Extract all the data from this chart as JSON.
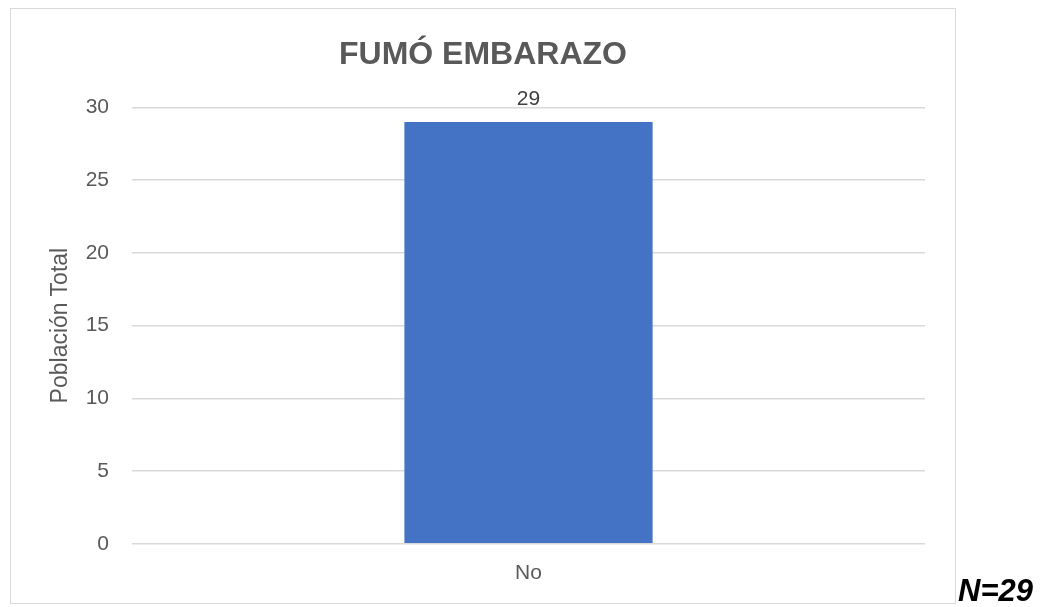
{
  "chart_data": {
    "type": "bar",
    "title": "FUMÓ EMBARAZO",
    "ylabel": "Población Total",
    "categories": [
      "No"
    ],
    "values": [
      29
    ],
    "color": "#4472c4",
    "ylim": [
      0,
      30
    ],
    "yticks": [
      0,
      5,
      10,
      15,
      20,
      25,
      30
    ],
    "grid": "y",
    "data_labels": true,
    "annotations": [
      "N=29"
    ]
  }
}
